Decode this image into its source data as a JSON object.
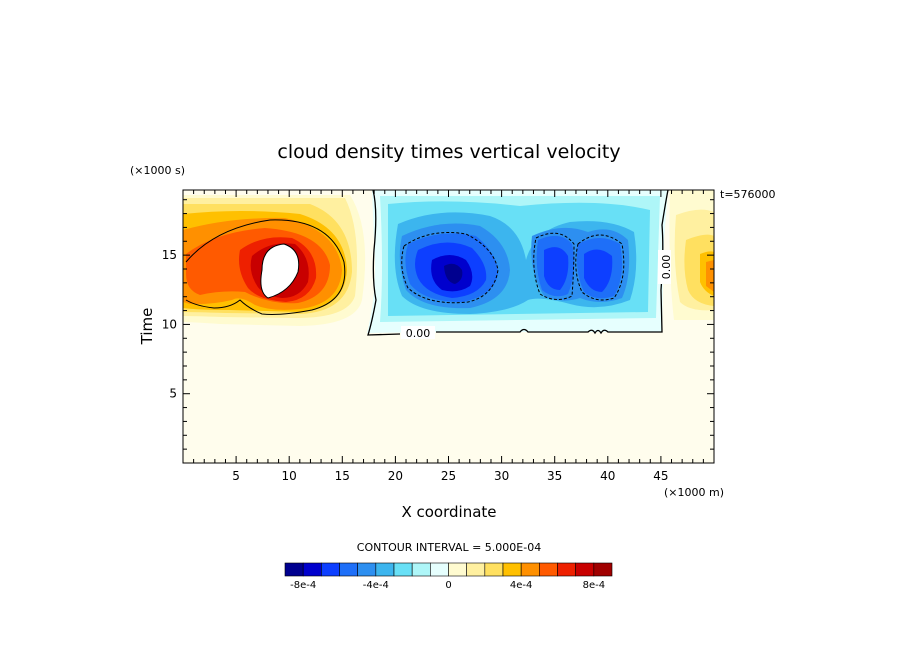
{
  "chart_data": {
    "type": "heatmap",
    "title": "cloud density times vertical velocity",
    "xlabel": "X coordinate",
    "ylabel": "Time",
    "x_unit_label": "(×1000 m)",
    "y_unit_label": "(×1000 s)",
    "time_stamp": "t=576000",
    "xlim": [
      0,
      50
    ],
    "ylim": [
      0,
      19.7
    ],
    "x_ticks": [
      "5",
      "10",
      "15",
      "20",
      "25",
      "30",
      "35",
      "40",
      "45"
    ],
    "y_ticks": [
      "5",
      "10",
      "15"
    ],
    "contour_interval_label": "CONTOUR INTERVAL = 5.000E-04",
    "contour_labels": [
      "0.00",
      "0.00"
    ],
    "colorbar": {
      "colors": [
        "#00008f",
        "#0000cd",
        "#0d3fff",
        "#1e6ff8",
        "#2d8ff0",
        "#3cb5ee",
        "#68e0f6",
        "#aef6f8",
        "#e6fffe",
        "#fffbd0",
        "#fff0a0",
        "#ffe060",
        "#ffc000",
        "#ff9000",
        "#ff5a00",
        "#ee2000",
        "#c80000",
        "#a00000"
      ],
      "tick_labels": [
        "-8e-4",
        "-4e-4",
        "0",
        "4e-4",
        "8e-4"
      ],
      "tick_values": [
        -0.0008,
        -0.0004,
        0,
        0.0004,
        0.0008
      ]
    },
    "features": [
      {
        "name": "positive-updraft-region",
        "x_center": 9,
        "y_center": 14.5,
        "peak": ">0.001"
      },
      {
        "name": "negative-region-1",
        "x_center": 26,
        "y_center": 13.8,
        "peak": -0.0009
      },
      {
        "name": "negative-region-2",
        "x_center": 38,
        "y_center": 14,
        "peak": -0.0007
      },
      {
        "name": "positive-edge-region",
        "x_center": 49,
        "y_center": 13.5,
        "peak": 0.0004
      }
    ]
  },
  "colors": {
    "background_field": "#fffded",
    "frame": "#000000"
  }
}
